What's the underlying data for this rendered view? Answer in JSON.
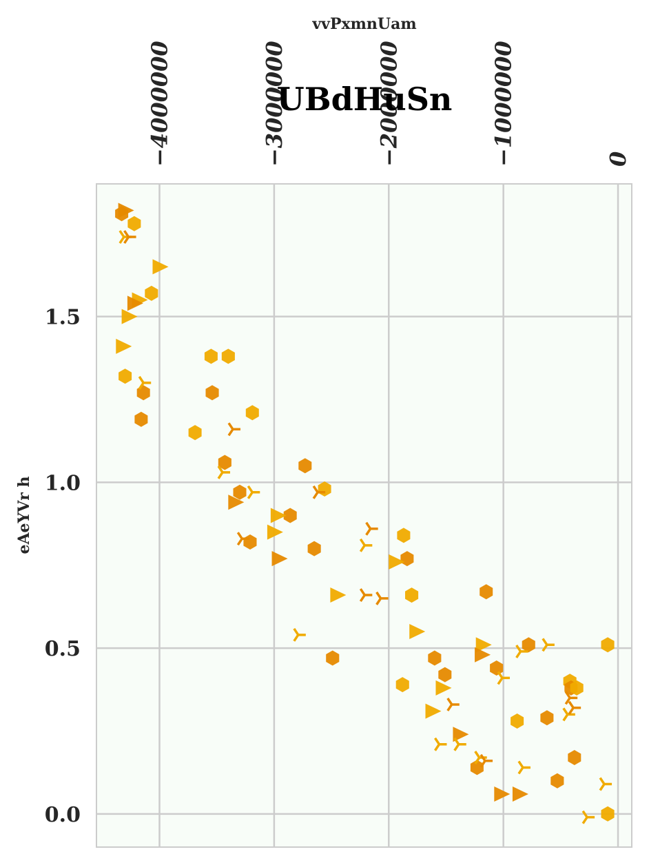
{
  "chart_data": {
    "type": "scatter",
    "title": "UBdHuSn",
    "xlabel": "vvPxmnUam",
    "ylabel": "eAeYVr h",
    "x_axis_position": "top",
    "xlim": [
      -4550000,
      120000
    ],
    "ylim": [
      -0.1,
      1.9
    ],
    "xticks": [
      -4000000,
      -3000000,
      -2000000,
      -1000000,
      0
    ],
    "xtick_labels": [
      "−4000000",
      "−3000000",
      "−2000000",
      "−1000000",
      "0"
    ],
    "yticks": [
      0.0,
      0.5,
      1.0,
      1.5
    ],
    "ytick_labels": [
      "0.0",
      "0.5",
      "1.0",
      "1.5"
    ],
    "grid": true,
    "legend": "none",
    "colors": {
      "background": "#f8fdf8",
      "grid": "#cccccc",
      "orange_dark": "#e68a00",
      "orange_light": "#f0ab00"
    },
    "series": [
      {
        "marker": "hexagon",
        "points": [
          [
            -4330000,
            1.81,
            "dark"
          ],
          [
            -4220000,
            1.78,
            "light"
          ],
          [
            -4070000,
            1.57,
            "light"
          ],
          [
            -4300000,
            1.32,
            "light"
          ],
          [
            -4140000,
            1.27,
            "dark"
          ],
          [
            -4160000,
            1.19,
            "dark"
          ],
          [
            -3550000,
            1.38,
            "light"
          ],
          [
            -3400000,
            1.38,
            "light"
          ],
          [
            -3540000,
            1.27,
            "dark"
          ],
          [
            -3190000,
            1.21,
            "light"
          ],
          [
            -3690000,
            1.15,
            "light"
          ],
          [
            -3430000,
            1.06,
            "dark"
          ],
          [
            -3300000,
            0.97,
            "dark"
          ],
          [
            -3210000,
            0.82,
            "dark"
          ],
          [
            -2860000,
            0.9,
            "dark"
          ],
          [
            -2730000,
            1.05,
            "dark"
          ],
          [
            -2560000,
            0.98,
            "light"
          ],
          [
            -2650000,
            0.8,
            "dark"
          ],
          [
            -2490000,
            0.47,
            "dark"
          ],
          [
            -1870000,
            0.84,
            "light"
          ],
          [
            -1840000,
            0.77,
            "dark"
          ],
          [
            -1800000,
            0.66,
            "light"
          ],
          [
            -1880000,
            0.39,
            "light"
          ],
          [
            -1600000,
            0.47,
            "dark"
          ],
          [
            -1510000,
            0.42,
            "dark"
          ],
          [
            -1150000,
            0.67,
            "dark"
          ],
          [
            -1230000,
            0.14,
            "dark"
          ],
          [
            -1060000,
            0.44,
            "dark"
          ],
          [
            -880000,
            0.28,
            "light"
          ],
          [
            -780000,
            0.51,
            "dark"
          ],
          [
            -620000,
            0.29,
            "dark"
          ],
          [
            -530000,
            0.1,
            "dark"
          ],
          [
            -420000,
            0.4,
            "light"
          ],
          [
            -410000,
            0.38,
            "dark"
          ],
          [
            -360000,
            0.38,
            "light"
          ],
          [
            -380000,
            0.17,
            "dark"
          ],
          [
            -90000,
            0.51,
            "light"
          ],
          [
            -90000,
            0.0,
            "light"
          ]
        ]
      },
      {
        "marker": "triangle-right",
        "points": [
          [
            -4300000,
            1.82,
            "dark"
          ],
          [
            -4000000,
            1.65,
            "light"
          ],
          [
            -4180000,
            1.55,
            "light"
          ],
          [
            -4220000,
            1.54,
            "dark"
          ],
          [
            -4270000,
            1.5,
            "light"
          ],
          [
            -4320000,
            1.41,
            "light"
          ],
          [
            -3340000,
            0.94,
            "dark"
          ],
          [
            -2970000,
            0.9,
            "light"
          ],
          [
            -3000000,
            0.85,
            "light"
          ],
          [
            -2960000,
            0.77,
            "dark"
          ],
          [
            -2450000,
            0.66,
            "light"
          ],
          [
            -1940000,
            0.76,
            "light"
          ],
          [
            -1760000,
            0.55,
            "light"
          ],
          [
            -1530000,
            0.38,
            "light"
          ],
          [
            -1620000,
            0.31,
            "light"
          ],
          [
            -1380000,
            0.24,
            "dark"
          ],
          [
            -1180000,
            0.51,
            "light"
          ],
          [
            -1190000,
            0.48,
            "dark"
          ],
          [
            -1020000,
            0.06,
            "dark"
          ],
          [
            -860000,
            0.06,
            "dark"
          ]
        ]
      },
      {
        "marker": "tri-right",
        "points": [
          [
            -4310000,
            1.74,
            "light"
          ],
          [
            -4270000,
            1.74,
            "dark"
          ],
          [
            -4140000,
            1.3,
            "light"
          ],
          [
            -3360000,
            1.16,
            "dark"
          ],
          [
            -3450000,
            1.03,
            "light"
          ],
          [
            -3190000,
            0.97,
            "light"
          ],
          [
            -3280000,
            0.83,
            "dark"
          ],
          [
            -2790000,
            0.54,
            "light"
          ],
          [
            -2620000,
            0.97,
            "dark"
          ],
          [
            -2160000,
            0.86,
            "dark"
          ],
          [
            -2210000,
            0.81,
            "light"
          ],
          [
            -2210000,
            0.66,
            "dark"
          ],
          [
            -2070000,
            0.65,
            "dark"
          ],
          [
            -1450000,
            0.33,
            "dark"
          ],
          [
            -1560000,
            0.21,
            "light"
          ],
          [
            -1390000,
            0.21,
            "light"
          ],
          [
            -1210000,
            0.17,
            "light"
          ],
          [
            -1160000,
            0.16,
            "dark"
          ],
          [
            -1010000,
            0.41,
            "light"
          ],
          [
            -850000,
            0.49,
            "light"
          ],
          [
            -620000,
            0.51,
            "light"
          ],
          [
            -420000,
            0.35,
            "dark"
          ],
          [
            -440000,
            0.3,
            "light"
          ],
          [
            -390000,
            0.32,
            "dark"
          ],
          [
            -830000,
            0.14,
            "light"
          ],
          [
            -120000,
            0.09,
            "light"
          ],
          [
            -270000,
            -0.01,
            "light"
          ]
        ]
      }
    ]
  }
}
